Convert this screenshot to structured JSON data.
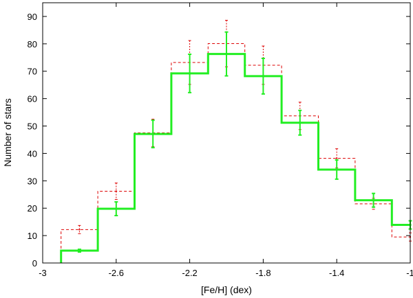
{
  "chart_data": {
    "type": "step-histogram",
    "xlabel": "[Fe/H] (dex)",
    "ylabel": "Number of stars",
    "xlim": [
      -3,
      -1
    ],
    "ylim": [
      0,
      95
    ],
    "xticks": [
      -3,
      -2.6,
      -2.2,
      -1.8,
      -1.4,
      -1
    ],
    "xtick_labels": [
      "-3",
      "-2.6",
      "-2.2",
      "-1.8",
      "-1.4",
      "-1"
    ],
    "yticks": [
      0,
      10,
      20,
      30,
      40,
      50,
      60,
      70,
      80,
      90
    ],
    "ytick_labels": [
      "0",
      "10",
      "20",
      "30",
      "40",
      "50",
      "60",
      "70",
      "80",
      "90"
    ],
    "bin_edges": [
      -2.9,
      -2.7,
      -2.5,
      -2.3,
      -2.1,
      -1.9,
      -1.7,
      -1.5,
      -1.3,
      -1.1,
      -1.0
    ],
    "bin_centers": [
      -2.8,
      -2.6,
      -2.4,
      -2.2,
      -2.0,
      -1.8,
      -1.6,
      -1.4,
      -1.2,
      -1.0
    ],
    "series": [
      {
        "style": "dashed",
        "color": "#dd0000",
        "values": [
          12.2,
          26.2,
          47.5,
          73.2,
          80.1,
          72.2,
          53.7,
          38.2,
          21.6,
          9.5
        ],
        "errors": [
          1.5,
          3.0,
          5.0,
          8.0,
          8.5,
          7.0,
          5.0,
          3.5,
          2.0,
          1.5
        ]
      },
      {
        "style": "solid",
        "color": "#22ee22",
        "values": [
          4.5,
          19.8,
          47.1,
          69.2,
          76.3,
          68.2,
          51.2,
          34.1,
          22.9,
          13.9
        ],
        "errors": [
          0.5,
          2.5,
          5.0,
          7.0,
          8.0,
          6.5,
          4.5,
          3.5,
          2.5,
          1.5
        ]
      }
    ]
  }
}
